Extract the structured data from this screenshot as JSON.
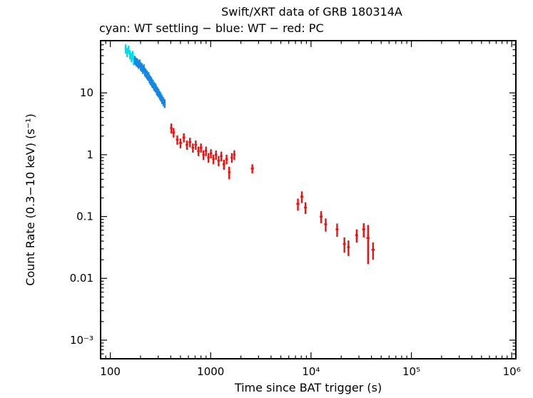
{
  "chart_data": {
    "type": "scatter",
    "title": "Swift/XRT data of GRB 180314A",
    "subtitle": "cyan: WT settling − blue: WT − red: PC",
    "xlabel": "Time since BAT trigger (s)",
    "ylabel": "Count Rate (0.3−10 keV) (s⁻¹)",
    "xscale": "log",
    "yscale": "log",
    "xlim": [
      80,
      1100000
    ],
    "ylim": [
      0.0005,
      70
    ],
    "grid": false,
    "legend_position": "subtitle-line",
    "x_ticks": [
      {
        "v": 100,
        "label": "100"
      },
      {
        "v": 1000,
        "label": "1000"
      },
      {
        "v": 10000,
        "label": "10⁴"
      },
      {
        "v": 100000,
        "label": "10⁵"
      },
      {
        "v": 1000000,
        "label": "10⁶"
      }
    ],
    "y_ticks": [
      {
        "v": 0.001,
        "label": "10⁻³"
      },
      {
        "v": 0.01,
        "label": "0.01"
      },
      {
        "v": 0.1,
        "label": "0.1"
      },
      {
        "v": 1,
        "label": "1"
      },
      {
        "v": 10,
        "label": "10"
      }
    ],
    "series": [
      {
        "name": "WT settling",
        "color": "#00dce8",
        "points_format": [
          "time_s",
          "time_err_s",
          "rate_cps",
          "rate_err_cps"
        ],
        "points": [
          [
            142,
            3,
            52,
            9
          ],
          [
            147,
            3,
            46,
            8
          ],
          [
            152,
            3,
            50,
            8
          ],
          [
            157,
            3,
            42,
            7
          ],
          [
            162,
            3,
            38,
            6.5
          ],
          [
            167,
            3,
            41,
            7
          ],
          [
            171,
            2,
            34,
            6
          ]
        ]
      },
      {
        "name": "WT",
        "color": "#1787e0",
        "points_format": [
          "time_s",
          "time_err_s",
          "rate_cps",
          "rate_err_cps"
        ],
        "points": [
          [
            176,
            2,
            34,
            5.5
          ],
          [
            181,
            2,
            32,
            5
          ],
          [
            186,
            2,
            31,
            5
          ],
          [
            191,
            2,
            29,
            4.6
          ],
          [
            196,
            2,
            30,
            4.8
          ],
          [
            201,
            2,
            27,
            4.3
          ],
          [
            206,
            2,
            26,
            4.2
          ],
          [
            211,
            2,
            24,
            3.8
          ],
          [
            216,
            2,
            25,
            4
          ],
          [
            221,
            2,
            22,
            3.5
          ],
          [
            226,
            2,
            21,
            3.4
          ],
          [
            231,
            2,
            20,
            3.2
          ],
          [
            236,
            2,
            19,
            3
          ],
          [
            241,
            2,
            18.5,
            3
          ],
          [
            246,
            2,
            17,
            2.7
          ],
          [
            251,
            2,
            16,
            2.6
          ],
          [
            256,
            3,
            15.5,
            2.5
          ],
          [
            261,
            3,
            14.5,
            2.3
          ],
          [
            266,
            3,
            14,
            2.2
          ],
          [
            272,
            3,
            13,
            2.1
          ],
          [
            278,
            3,
            12.5,
            2
          ],
          [
            284,
            3,
            12,
            1.9
          ],
          [
            290,
            3,
            11,
            1.8
          ],
          [
            296,
            3,
            10.5,
            1.7
          ],
          [
            303,
            3,
            10,
            1.6
          ],
          [
            311,
            4,
            9.2,
            1.5
          ],
          [
            319,
            4,
            8.6,
            1.4
          ],
          [
            328,
            4,
            7.9,
            1.3
          ],
          [
            338,
            4,
            7.3,
            1.2
          ],
          [
            348,
            4,
            6.8,
            1.1
          ]
        ]
      },
      {
        "name": "PC",
        "color": "#ee1111",
        "points_format": [
          "time_s",
          "time_err_s",
          "rate_cps",
          "rate_err_cps"
        ],
        "points": [
          [
            405,
            12,
            2.7,
            0.5
          ],
          [
            427,
            12,
            2.3,
            0.4
          ],
          [
            465,
            15,
            1.75,
            0.3
          ],
          [
            500,
            18,
            1.55,
            0.28
          ],
          [
            540,
            18,
            1.9,
            0.32
          ],
          [
            580,
            18,
            1.45,
            0.25
          ],
          [
            622,
            20,
            1.6,
            0.28
          ],
          [
            665,
            20,
            1.3,
            0.22
          ],
          [
            710,
            22,
            1.45,
            0.25
          ],
          [
            755,
            22,
            1.15,
            0.2
          ],
          [
            800,
            24,
            1.3,
            0.22
          ],
          [
            848,
            24,
            1.0,
            0.18
          ],
          [
            898,
            25,
            1.15,
            0.2
          ],
          [
            950,
            26,
            0.9,
            0.16
          ],
          [
            1005,
            28,
            1.05,
            0.18
          ],
          [
            1065,
            30,
            0.85,
            0.15
          ],
          [
            1130,
            34,
            1.0,
            0.17
          ],
          [
            1200,
            36,
            0.8,
            0.15
          ],
          [
            1275,
            38,
            0.95,
            0.17
          ],
          [
            1355,
            40,
            0.7,
            0.13
          ],
          [
            1440,
            42,
            0.85,
            0.15
          ],
          [
            1530,
            44,
            0.52,
            0.12
          ],
          [
            1625,
            46,
            0.9,
            0.16
          ],
          [
            1720,
            48,
            1.0,
            0.18
          ],
          [
            2600,
            90,
            0.6,
            0.1
          ],
          [
            7400,
            260,
            0.16,
            0.035
          ],
          [
            8100,
            270,
            0.21,
            0.045
          ],
          [
            8800,
            280,
            0.14,
            0.03
          ],
          [
            12600,
            420,
            0.1,
            0.022
          ],
          [
            14000,
            460,
            0.075,
            0.018
          ],
          [
            18200,
            600,
            0.062,
            0.015
          ],
          [
            21500,
            700,
            0.036,
            0.01
          ],
          [
            23600,
            750,
            0.032,
            0.009
          ],
          [
            28500,
            900,
            0.05,
            0.012
          ],
          [
            33500,
            1200,
            0.062,
            0.016
          ],
          [
            37000,
            1400,
            0.045,
            0.028
          ],
          [
            41500,
            1500,
            0.029,
            0.009
          ]
        ]
      }
    ]
  }
}
